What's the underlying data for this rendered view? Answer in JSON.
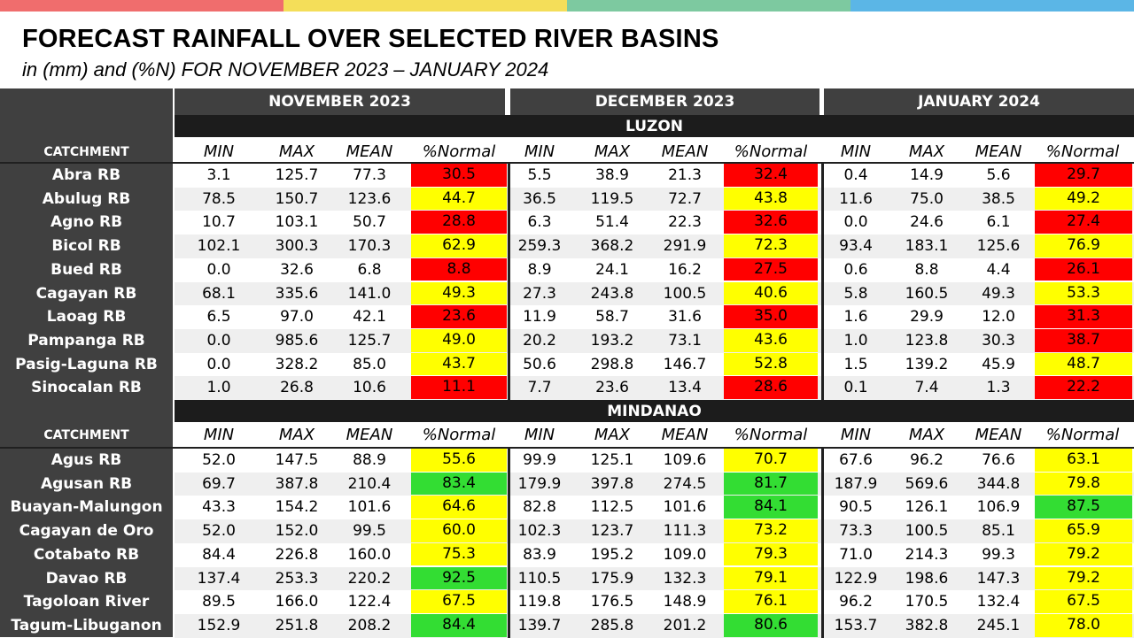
{
  "title": "FORECAST RAINFALL OVER SELECTED RIVER BASINS",
  "subtitle": "in (mm) and (%N) FOR NOVEMBER 2023 – JANUARY 2024",
  "colors": {
    "topbar": [
      "#f06d6d",
      "#f4de59",
      "#7dc9a0",
      "#5bb6e6"
    ],
    "red": "#ff0000",
    "yellow": "#ffff00",
    "green": "#33dd33"
  },
  "months": [
    "NOVEMBER 2023",
    "DECEMBER 2023",
    "JANUARY 2024"
  ],
  "catchment_label": "CATCHMENT",
  "column_labels": [
    "MIN",
    "MAX",
    "MEAN",
    "%Normal"
  ],
  "regions": [
    {
      "name": "LUZON",
      "rows": [
        {
          "name": "Abra RB",
          "v": [
            [
              "3.1",
              "125.7",
              "77.3",
              "30.5"
            ],
            [
              "5.5",
              "38.9",
              "21.3",
              "32.4"
            ],
            [
              "0.4",
              "14.9",
              "5.6",
              "29.7"
            ]
          ],
          "c": [
            "red",
            "red",
            "red"
          ]
        },
        {
          "name": "Abulug RB",
          "v": [
            [
              "78.5",
              "150.7",
              "123.6",
              "44.7"
            ],
            [
              "36.5",
              "119.5",
              "72.7",
              "43.8"
            ],
            [
              "11.6",
              "75.0",
              "38.5",
              "49.2"
            ]
          ],
          "c": [
            "yellow",
            "yellow",
            "yellow"
          ]
        },
        {
          "name": "Agno RB",
          "v": [
            [
              "10.7",
              "103.1",
              "50.7",
              "28.8"
            ],
            [
              "6.3",
              "51.4",
              "22.3",
              "32.6"
            ],
            [
              "0.0",
              "24.6",
              "6.1",
              "27.4"
            ]
          ],
          "c": [
            "red",
            "red",
            "red"
          ]
        },
        {
          "name": "Bicol RB",
          "v": [
            [
              "102.1",
              "300.3",
              "170.3",
              "62.9"
            ],
            [
              "259.3",
              "368.2",
              "291.9",
              "72.3"
            ],
            [
              "93.4",
              "183.1",
              "125.6",
              "76.9"
            ]
          ],
          "c": [
            "yellow",
            "yellow",
            "yellow"
          ]
        },
        {
          "name": "Bued RB",
          "v": [
            [
              "0.0",
              "32.6",
              "6.8",
              "8.8"
            ],
            [
              "8.9",
              "24.1",
              "16.2",
              "27.5"
            ],
            [
              "0.6",
              "8.8",
              "4.4",
              "26.1"
            ]
          ],
          "c": [
            "red",
            "red",
            "red"
          ]
        },
        {
          "name": "Cagayan RB",
          "v": [
            [
              "68.1",
              "335.6",
              "141.0",
              "49.3"
            ],
            [
              "27.3",
              "243.8",
              "100.5",
              "40.6"
            ],
            [
              "5.8",
              "160.5",
              "49.3",
              "53.3"
            ]
          ],
          "c": [
            "yellow",
            "yellow",
            "yellow"
          ]
        },
        {
          "name": "Laoag RB",
          "v": [
            [
              "6.5",
              "97.0",
              "42.1",
              "23.6"
            ],
            [
              "11.9",
              "58.7",
              "31.6",
              "35.0"
            ],
            [
              "1.6",
              "29.9",
              "12.0",
              "31.3"
            ]
          ],
          "c": [
            "red",
            "red",
            "red"
          ]
        },
        {
          "name": "Pampanga RB",
          "v": [
            [
              "0.0",
              "985.6",
              "125.7",
              "49.0"
            ],
            [
              "20.2",
              "193.2",
              "73.1",
              "43.6"
            ],
            [
              "1.0",
              "123.8",
              "30.3",
              "38.7"
            ]
          ],
          "c": [
            "yellow",
            "yellow",
            "red"
          ]
        },
        {
          "name": "Pasig-Laguna RB",
          "v": [
            [
              "0.0",
              "328.2",
              "85.0",
              "43.7"
            ],
            [
              "50.6",
              "298.8",
              "146.7",
              "52.8"
            ],
            [
              "1.5",
              "139.2",
              "45.9",
              "48.7"
            ]
          ],
          "c": [
            "yellow",
            "yellow",
            "yellow"
          ]
        },
        {
          "name": "Sinocalan RB",
          "v": [
            [
              "1.0",
              "26.8",
              "10.6",
              "11.1"
            ],
            [
              "7.7",
              "23.6",
              "13.4",
              "28.6"
            ],
            [
              "0.1",
              "7.4",
              "1.3",
              "22.2"
            ]
          ],
          "c": [
            "red",
            "red",
            "red"
          ]
        }
      ]
    },
    {
      "name": "MINDANAO",
      "rows": [
        {
          "name": "Agus RB",
          "v": [
            [
              "52.0",
              "147.5",
              "88.9",
              "55.6"
            ],
            [
              "99.9",
              "125.1",
              "109.6",
              "70.7"
            ],
            [
              "67.6",
              "96.2",
              "76.6",
              "63.1"
            ]
          ],
          "c": [
            "yellow",
            "yellow",
            "yellow"
          ]
        },
        {
          "name": "Agusan RB",
          "v": [
            [
              "69.7",
              "387.8",
              "210.4",
              "83.4"
            ],
            [
              "179.9",
              "397.8",
              "274.5",
              "81.7"
            ],
            [
              "187.9",
              "569.6",
              "344.8",
              "79.8"
            ]
          ],
          "c": [
            "green",
            "green",
            "yellow"
          ]
        },
        {
          "name": "Buayan-Malungon",
          "v": [
            [
              "43.3",
              "154.2",
              "101.6",
              "64.6"
            ],
            [
              "82.8",
              "112.5",
              "101.6",
              "84.1"
            ],
            [
              "90.5",
              "126.1",
              "106.9",
              "87.5"
            ]
          ],
          "c": [
            "yellow",
            "green",
            "green"
          ]
        },
        {
          "name": "Cagayan de Oro",
          "v": [
            [
              "52.0",
              "152.0",
              "99.5",
              "60.0"
            ],
            [
              "102.3",
              "123.7",
              "111.3",
              "73.2"
            ],
            [
              "73.3",
              "100.5",
              "85.1",
              "65.9"
            ]
          ],
          "c": [
            "yellow",
            "yellow",
            "yellow"
          ]
        },
        {
          "name": "Cotabato RB",
          "v": [
            [
              "84.4",
              "226.8",
              "160.0",
              "75.3"
            ],
            [
              "83.9",
              "195.2",
              "109.0",
              "79.3"
            ],
            [
              "71.0",
              "214.3",
              "99.3",
              "79.2"
            ]
          ],
          "c": [
            "yellow",
            "yellow",
            "yellow"
          ]
        },
        {
          "name": "Davao RB",
          "v": [
            [
              "137.4",
              "253.3",
              "220.2",
              "92.5"
            ],
            [
              "110.5",
              "175.9",
              "132.3",
              "79.1"
            ],
            [
              "122.9",
              "198.6",
              "147.3",
              "79.2"
            ]
          ],
          "c": [
            "green",
            "yellow",
            "yellow"
          ]
        },
        {
          "name": "Tagoloan River",
          "v": [
            [
              "89.5",
              "166.0",
              "122.4",
              "67.5"
            ],
            [
              "119.8",
              "176.5",
              "148.9",
              "76.1"
            ],
            [
              "96.2",
              "170.5",
              "132.4",
              "67.5"
            ]
          ],
          "c": [
            "yellow",
            "yellow",
            "yellow"
          ]
        },
        {
          "name": "Tagum-Libuganon",
          "v": [
            [
              "152.9",
              "251.8",
              "208.2",
              "84.4"
            ],
            [
              "139.7",
              "285.8",
              "201.2",
              "80.6"
            ],
            [
              "153.7",
              "382.8",
              "245.1",
              "78.0"
            ]
          ],
          "c": [
            "green",
            "green",
            "yellow"
          ]
        }
      ]
    }
  ]
}
